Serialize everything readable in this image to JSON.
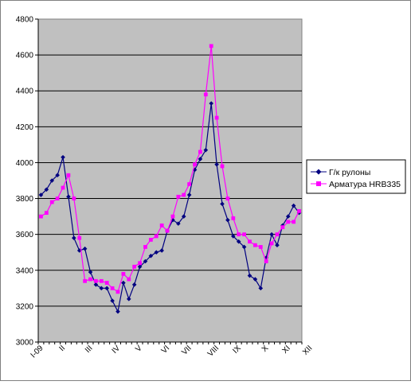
{
  "chart_data": {
    "type": "line",
    "title": "",
    "xlabel": "",
    "ylabel": "",
    "ylim": [
      3000,
      4800
    ],
    "yticks": [
      3000,
      3200,
      3400,
      3600,
      3800,
      4000,
      4200,
      4400,
      4600,
      4800
    ],
    "grid": true,
    "legend_position": "right",
    "plot_background": "#c0c0c0",
    "month_labels": [
      {
        "label": "I-09",
        "index": 0
      },
      {
        "label": "II",
        "index": 4
      },
      {
        "label": "III",
        "index": 9
      },
      {
        "label": "IV",
        "index": 14
      },
      {
        "label": "V",
        "index": 18
      },
      {
        "label": "VI",
        "index": 23
      },
      {
        "label": "VII",
        "index": 27
      },
      {
        "label": "VIII",
        "index": 32
      },
      {
        "label": "IX",
        "index": 36
      },
      {
        "label": "X",
        "index": 41
      },
      {
        "label": "XI",
        "index": 45
      },
      {
        "label": "XII",
        "index": 49
      }
    ],
    "series": [
      {
        "name": "Г/к рулоны",
        "color": "#000080",
        "marker": "diamond",
        "values": [
          3820,
          3850,
          3900,
          3930,
          4030,
          3810,
          3580,
          3510,
          3520,
          3390,
          3320,
          3300,
          3300,
          3230,
          3170,
          3330,
          3240,
          3320,
          3420,
          3450,
          3480,
          3500,
          3510,
          3620,
          3680,
          3660,
          3700,
          3820,
          3960,
          4020,
          4070,
          4330,
          3990,
          3770,
          3680,
          3590,
          3560,
          3530,
          3370,
          3350,
          3300,
          3470,
          3600,
          3540,
          3650,
          3700,
          3760,
          3720
        ]
      },
      {
        "name": "Арматура HRB335",
        "color": "#ff00ff",
        "marker": "square",
        "values": [
          3700,
          3720,
          3780,
          3800,
          3860,
          3930,
          3800,
          3580,
          3340,
          3350,
          3340,
          3340,
          3330,
          3300,
          3280,
          3380,
          3350,
          3420,
          3440,
          3530,
          3570,
          3590,
          3650,
          3620,
          3700,
          3810,
          3820,
          3880,
          3990,
          4060,
          4380,
          4650,
          4250,
          3980,
          3800,
          3690,
          3600,
          3600,
          3560,
          3540,
          3530,
          3450,
          3550,
          3600,
          3640,
          3670,
          3670,
          3730
        ]
      }
    ]
  }
}
